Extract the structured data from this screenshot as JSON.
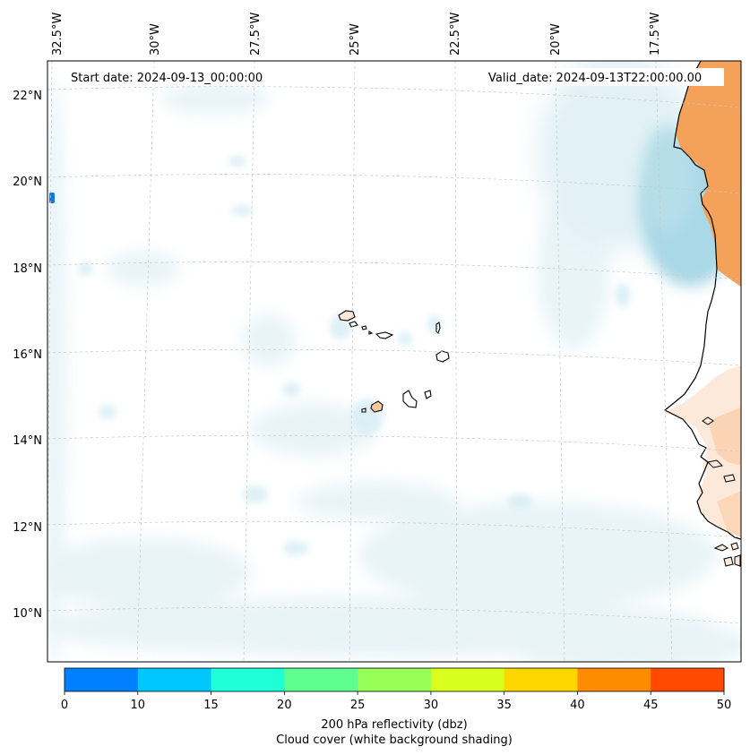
{
  "map": {
    "start_date_text": "Start date: 2024-09-13_00:00:00",
    "valid_date_text": "Valid_date: 2024-09-13T22:00:00.00",
    "lon_labels": [
      "32.5°W",
      "30°W",
      "27.5°W",
      "25°W",
      "22.5°W",
      "20°W",
      "17.5°W"
    ],
    "lat_labels": [
      "22°N",
      "20°N",
      "18°N",
      "16°N",
      "14°N",
      "12°N",
      "10°N"
    ],
    "extent": {
      "lon_min": -33.2,
      "lon_max": -15.2,
      "lat_min": 8.8,
      "lat_max": 22.8
    },
    "projection": "Lambert conformal (curved graticule)"
  },
  "colorbar": {
    "ticks": [
      "0",
      "10",
      "15",
      "20",
      "25",
      "30",
      "35",
      "40",
      "45",
      "50"
    ],
    "colors": [
      "#0080ff",
      "#00c8ff",
      "#1effd7",
      "#5eff8f",
      "#98ff58",
      "#d8ff1e",
      "#ffd700",
      "#ff8c00",
      "#ff4a00"
    ],
    "label_line1": "200 hPa reflectivity (dbz)",
    "label_line2": "Cloud cover (white background shading)"
  },
  "colors": {
    "land_hot": "#f4a25a",
    "land_mild": "#f9d2b0",
    "cloud": "#a9d8e6",
    "cloud_light": "#e2f1f6",
    "coast": "#000000",
    "grid": "#c8c8c8"
  }
}
